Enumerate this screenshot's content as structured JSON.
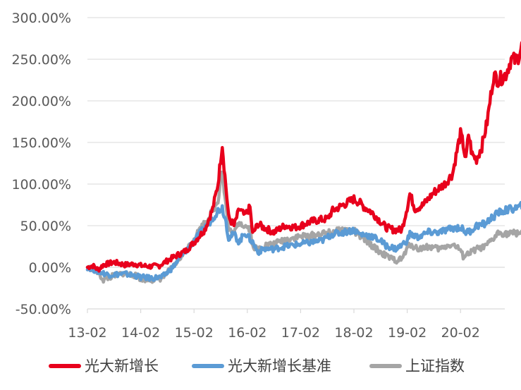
{
  "chart_data": {
    "type": "line",
    "x_ticks": [
      "13-02",
      "14-02",
      "15-02",
      "16-02",
      "17-02",
      "18-02",
      "19-02",
      "20-02"
    ],
    "y_ticks": [
      "300.00%",
      "250.00%",
      "200.00%",
      "150.00%",
      "100.00%",
      "50.00%",
      "0.00%",
      "-50.00%"
    ],
    "ylim": [
      -50,
      300
    ],
    "y_unit": "%",
    "grid": "horizontal",
    "legend_position": "bottom",
    "series": [
      {
        "name": "光大新增长",
        "color": "#e8001c",
        "points": [
          [
            0.0,
            0
          ],
          [
            0.1,
            2
          ],
          [
            0.2,
            -3
          ],
          [
            0.3,
            3
          ],
          [
            0.5,
            6
          ],
          [
            0.7,
            3
          ],
          [
            0.9,
            4
          ],
          [
            1.0,
            2
          ],
          [
            1.2,
            1
          ],
          [
            1.35,
            2
          ],
          [
            1.5,
            8
          ],
          [
            1.7,
            15
          ],
          [
            1.85,
            20
          ],
          [
            2.0,
            30
          ],
          [
            2.2,
            45
          ],
          [
            2.35,
            70
          ],
          [
            2.45,
            100
          ],
          [
            2.53,
            148
          ],
          [
            2.58,
            110
          ],
          [
            2.65,
            60
          ],
          [
            2.75,
            50
          ],
          [
            2.85,
            70
          ],
          [
            2.95,
            62
          ],
          [
            3.05,
            72
          ],
          [
            3.1,
            40
          ],
          [
            3.2,
            52
          ],
          [
            3.3,
            48
          ],
          [
            3.5,
            42
          ],
          [
            3.7,
            50
          ],
          [
            3.9,
            48
          ],
          [
            4.0,
            50
          ],
          [
            4.2,
            55
          ],
          [
            4.35,
            57
          ],
          [
            4.5,
            58
          ],
          [
            4.6,
            68
          ],
          [
            4.8,
            75
          ],
          [
            5.0,
            82
          ],
          [
            5.1,
            78
          ],
          [
            5.2,
            72
          ],
          [
            5.3,
            68
          ],
          [
            5.4,
            62
          ],
          [
            5.5,
            55
          ],
          [
            5.6,
            48
          ],
          [
            5.75,
            45
          ],
          [
            5.9,
            45
          ],
          [
            6.0,
            72
          ],
          [
            6.05,
            88
          ],
          [
            6.15,
            70
          ],
          [
            6.3,
            75
          ],
          [
            6.5,
            90
          ],
          [
            6.7,
            100
          ],
          [
            6.85,
            112
          ],
          [
            6.95,
            145
          ],
          [
            7.0,
            160
          ],
          [
            7.05,
            148
          ],
          [
            7.1,
            128
          ],
          [
            7.15,
            160
          ],
          [
            7.22,
            135
          ],
          [
            7.3,
            130
          ],
          [
            7.4,
            145
          ],
          [
            7.5,
            175
          ],
          [
            7.62,
            230
          ],
          [
            7.72,
            225
          ],
          [
            7.85,
            232
          ],
          [
            7.95,
            250
          ],
          [
            8.05,
            248
          ],
          [
            8.15,
            265
          ],
          [
            8.25,
            270
          ],
          [
            8.3,
            282
          ]
        ]
      },
      {
        "name": "光大新增长基准",
        "color": "#5b9bd5",
        "points": [
          [
            0.0,
            0
          ],
          [
            0.2,
            -5
          ],
          [
            0.4,
            -9
          ],
          [
            0.7,
            -8
          ],
          [
            0.9,
            -10
          ],
          [
            1.0,
            -12
          ],
          [
            1.2,
            -13
          ],
          [
            1.4,
            -12
          ],
          [
            1.6,
            0
          ],
          [
            1.85,
            20
          ],
          [
            2.1,
            40
          ],
          [
            2.3,
            55
          ],
          [
            2.45,
            68
          ],
          [
            2.53,
            72
          ],
          [
            2.6,
            55
          ],
          [
            2.65,
            35
          ],
          [
            2.75,
            40
          ],
          [
            2.85,
            30
          ],
          [
            2.95,
            42
          ],
          [
            3.1,
            30
          ],
          [
            3.2,
            18
          ],
          [
            3.3,
            22
          ],
          [
            3.5,
            22
          ],
          [
            3.7,
            25
          ],
          [
            3.9,
            27
          ],
          [
            4.0,
            28
          ],
          [
            4.2,
            30
          ],
          [
            4.4,
            32
          ],
          [
            4.6,
            40
          ],
          [
            4.8,
            42
          ],
          [
            5.0,
            45
          ],
          [
            5.1,
            40
          ],
          [
            5.3,
            38
          ],
          [
            5.5,
            32
          ],
          [
            5.6,
            26
          ],
          [
            5.8,
            22
          ],
          [
            6.0,
            32
          ],
          [
            6.05,
            40
          ],
          [
            6.2,
            36
          ],
          [
            6.4,
            42
          ],
          [
            6.6,
            42
          ],
          [
            6.85,
            47
          ],
          [
            7.0,
            48
          ],
          [
            7.1,
            42
          ],
          [
            7.2,
            44
          ],
          [
            7.3,
            50
          ],
          [
            7.45,
            52
          ],
          [
            7.6,
            60
          ],
          [
            7.75,
            67
          ],
          [
            7.95,
            70
          ],
          [
            8.1,
            72
          ],
          [
            8.2,
            76
          ],
          [
            8.3,
            80
          ]
        ]
      },
      {
        "name": "上证指数",
        "color": "#a5a5a5",
        "points": [
          [
            0.0,
            0
          ],
          [
            0.15,
            -3
          ],
          [
            0.3,
            -15
          ],
          [
            0.5,
            -10
          ],
          [
            0.7,
            -7
          ],
          [
            0.9,
            -10
          ],
          [
            1.0,
            -14
          ],
          [
            1.2,
            -15
          ],
          [
            1.4,
            -13
          ],
          [
            1.6,
            0
          ],
          [
            1.85,
            20
          ],
          [
            2.1,
            45
          ],
          [
            2.3,
            62
          ],
          [
            2.45,
            80
          ],
          [
            2.52,
            118
          ],
          [
            2.58,
            85
          ],
          [
            2.65,
            45
          ],
          [
            2.75,
            40
          ],
          [
            2.85,
            55
          ],
          [
            2.95,
            50
          ],
          [
            3.05,
            47
          ],
          [
            3.1,
            25
          ],
          [
            3.2,
            22
          ],
          [
            3.3,
            26
          ],
          [
            3.5,
            28
          ],
          [
            3.7,
            33
          ],
          [
            3.9,
            36
          ],
          [
            4.0,
            37
          ],
          [
            4.2,
            38
          ],
          [
            4.4,
            40
          ],
          [
            4.6,
            42
          ],
          [
            4.8,
            45
          ],
          [
            5.0,
            44
          ],
          [
            5.1,
            38
          ],
          [
            5.3,
            28
          ],
          [
            5.5,
            18
          ],
          [
            5.65,
            12
          ],
          [
            5.8,
            8
          ],
          [
            5.9,
            10
          ],
          [
            6.0,
            22
          ],
          [
            6.05,
            28
          ],
          [
            6.2,
            22
          ],
          [
            6.4,
            25
          ],
          [
            6.6,
            22
          ],
          [
            6.8,
            27
          ],
          [
            6.9,
            26
          ],
          [
            7.0,
            20
          ],
          [
            7.05,
            13
          ],
          [
            7.2,
            18
          ],
          [
            7.3,
            22
          ],
          [
            7.45,
            24
          ],
          [
            7.6,
            33
          ],
          [
            7.72,
            42
          ],
          [
            7.9,
            40
          ],
          [
            8.1,
            42
          ],
          [
            8.2,
            44
          ],
          [
            8.3,
            46
          ]
        ]
      }
    ]
  },
  "colors": {
    "axis": "#d9d9d9",
    "grid": "#d9d9d9",
    "tick_text": "#595959",
    "legend_text": "#404040"
  }
}
